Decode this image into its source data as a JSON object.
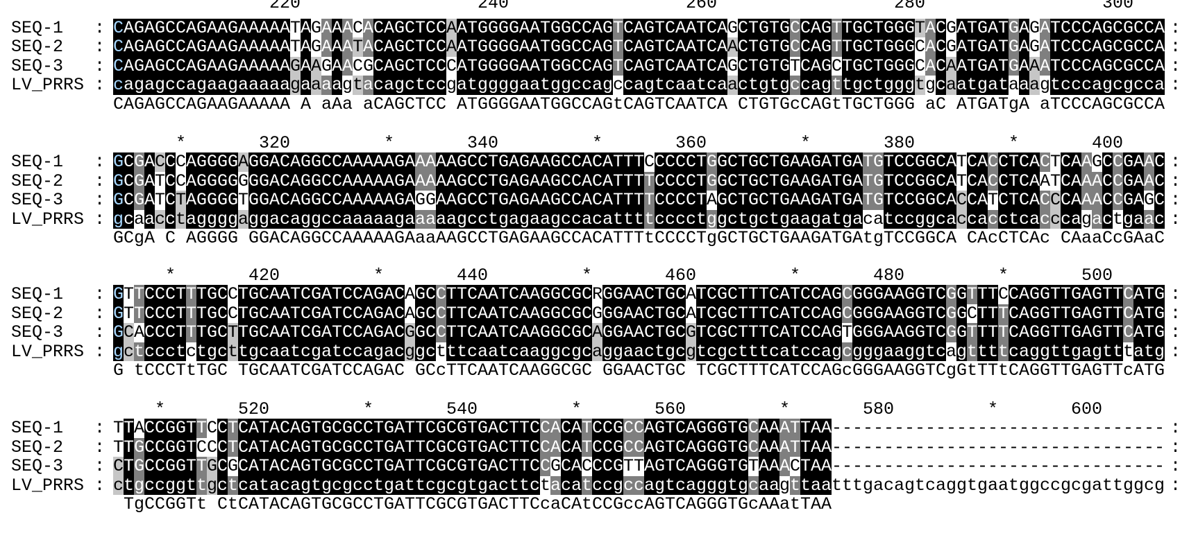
{
  "colors": {
    "identical": "#000000",
    "three_of_four": "#7f7f7f",
    "two_of_four": "#c6c6c6",
    "first_column_text": "#a8d8ff"
  },
  "row_names": [
    "SEQ-1",
    "SEQ-2",
    "SEQ-3",
    "LV_PRRS"
  ],
  "separator": ":",
  "blocks": [
    {
      "start": 203,
      "ruler": [
        {
          "pos": 220,
          "label": "220"
        },
        {
          "pos": 240,
          "label": "240"
        },
        {
          "pos": 260,
          "label": "260"
        },
        {
          "pos": 280,
          "label": "280"
        },
        {
          "pos": 300,
          "label": "300"
        }
      ],
      "sequences": [
        "CAGAGCCAGAAGAAAAATAGAAACACAGCTCCAATGGGGAATGGCCAGTCAGTCAATCAGCTGTGCCAGTTGCTGGGTACGATGATGAGATCCCAGCGCCA",
        "CAGAGCCAGAAGAAAAATAGAAATACAGCTCCAATGGGGAATGGCCAGTCAGTCAATCAACTGTGCCAGTTGCTGGGCACGATGATGAGATCCCAGCGCCA",
        "CAGAGCCAGAAGAAAAAGAAGAACGCAGCTCCCATGGGGAATGGCCAGTCAGTCAATCAGCTGTGTCAGCTGCTGGGCACAATGATGAAATCCCAGCGCCA",
        "cagagccagaagaaaaagaaaagtacagctccgatggggaatggccagccagtcaatcaactgtgccagttgctgggtgcaatgataaagtcccagcgcca"
      ],
      "consensus": "CAGAGCCAGAAGAAAAA A aAa aCAGCTCC ATGGGGAATGGCCAGtCAGTCAATCA CTGTGcCAGtTGCTGGG aC ATGATgA aTCCCAGCGCCA"
    },
    {
      "start": 304,
      "ruler": [
        {
          "pos": 310,
          "label": "*"
        },
        {
          "pos": 320,
          "label": "320"
        },
        {
          "pos": 330,
          "label": "*"
        },
        {
          "pos": 340,
          "label": "340"
        },
        {
          "pos": 350,
          "label": "*"
        },
        {
          "pos": 360,
          "label": "360"
        },
        {
          "pos": 370,
          "label": "*"
        },
        {
          "pos": 380,
          "label": "380"
        },
        {
          "pos": 390,
          "label": "*"
        },
        {
          "pos": 400,
          "label": "400"
        }
      ],
      "sequences": [
        "GCGACCCAGGGGAGGACAGGCCAAAAAGAAAAAGCCTGAGAAGCCACATTTCCCCCTGGCTGCTGAAGATGATGTCCGGCATCACCTCACTCAAGCCGAAC",
        "GCGATCCAGGGGGGGACAGGCCAAAAAGAAAAAGCCTGAGAAGCCACATTTTCCCCTGGCTGCTGAAGATGATGTCCGGCATCACCTCAATCAAACCGAAC",
        "GCGATCTAGGGGTGGACAGGCCAAAAAGAGGAAGCCTGAGAAGCCACATTTTCCCCTAGCTGCTGAAGATGATGTCCGGCACCATCTCACCCAAACCGAGC",
        "gcaacctaggggaggacaggccaaaaagaaaaagcctgagaagccacattttcccctggctgctgaagatgacatccggcaccacctcacccagactgaac"
      ],
      "consensus": "GCgA C AGGGG GGACAGGCCAAAAAGAaaAAGCCTGAGAAGCCACATTTtCCCCTgGCTGCTGAAGATGAtgTCCGGCA CAcCTCAc CAaaCcGAaC"
    },
    {
      "start": 405,
      "ruler": [
        {
          "pos": 410,
          "label": "*"
        },
        {
          "pos": 420,
          "label": "420"
        },
        {
          "pos": 430,
          "label": "*"
        },
        {
          "pos": 440,
          "label": "440"
        },
        {
          "pos": 450,
          "label": "*"
        },
        {
          "pos": 460,
          "label": "460"
        },
        {
          "pos": 470,
          "label": "*"
        },
        {
          "pos": 480,
          "label": "480"
        },
        {
          "pos": 490,
          "label": "*"
        },
        {
          "pos": 500,
          "label": "500"
        }
      ],
      "sequences": [
        "GTTCCCTTTGCCTGCAATCGATCCAGACAGCCTTCAATCAAGGCGCRGGAACTGCATCGCTTTCATCCAGCGGGAAGGTCGGTTTCCAGGTTGAGTTCATG",
        "GTTCCCTTTGCCTGCAATCGATCCAGACAGCCTTCAATCAAGGCGCGGGAACTGCATCGCTTTCATCCAGCGGGAAGGTCGGCTTTCAGGTTGAGTTCATG",
        "GCACCCTTTGCTTGCAATCGATCCAGACGGCCTTCAATCAAGGCGCAGGAACTGCGTCGCTTTCATCCAGTGGGAAGGTCGGTTTTCAGGTTGAGTTCATG",
        "gctccctctgcttgcaatcgatccagacggctttcaatcaaggcgcaggaactgcgtcgctttcatccagcgggaaggtcagttttcaggttgagtttatg"
      ],
      "consensus": "G tCCCTtTGC TGCAATCGATCCAGAC GCcTTCAATCAAGGCGC GGAACTGC TCGCTTTCATCCAGcGGGAAGGTCgGtTTtCAGGTTGAGTTcATG"
    },
    {
      "start": 506,
      "ruler": [
        {
          "pos": 510,
          "label": "*"
        },
        {
          "pos": 520,
          "label": "520"
        },
        {
          "pos": 530,
          "label": "*"
        },
        {
          "pos": 540,
          "label": "540"
        },
        {
          "pos": 550,
          "label": "*"
        },
        {
          "pos": 560,
          "label": "560"
        },
        {
          "pos": 570,
          "label": "*"
        },
        {
          "pos": 580,
          "label": "580"
        },
        {
          "pos": 590,
          "label": "*"
        },
        {
          "pos": 600,
          "label": "600"
        }
      ],
      "sequences": [
        "TTACCGGTTCCTCATACAGTGCGCCTGATTCGCGTGACTTCCACATCCGCCAGTCAGGGTGCAAATTAA--------------------------------",
        "TTGCCGGTCCCTCATACAGTGCGCCTGATTCGCGTGACTTCCACATCCGCCAGTCAGGGTGCAAATTAA--------------------------------",
        "CTGCCGGTTGCGCATACAGTGCGCCTGATTCGCGTGACTTCCGCACCCGTTAGTCAGGGTGTAAACTAA--------------------------------",
        "ctgccggttgctcatacagtgcgcctgattcgcgtgacttctacatccgccagtcagggtgcaagttaatttgacagtcaggtgaatggccgcgattggcg"
      ],
      "consensus": " TgCCGGTt CtCATACAGTGCGCCTGATTCGCGTGACTTCcaCAtCCGccAGTCAGGGTGcAAatTAA"
    }
  ]
}
